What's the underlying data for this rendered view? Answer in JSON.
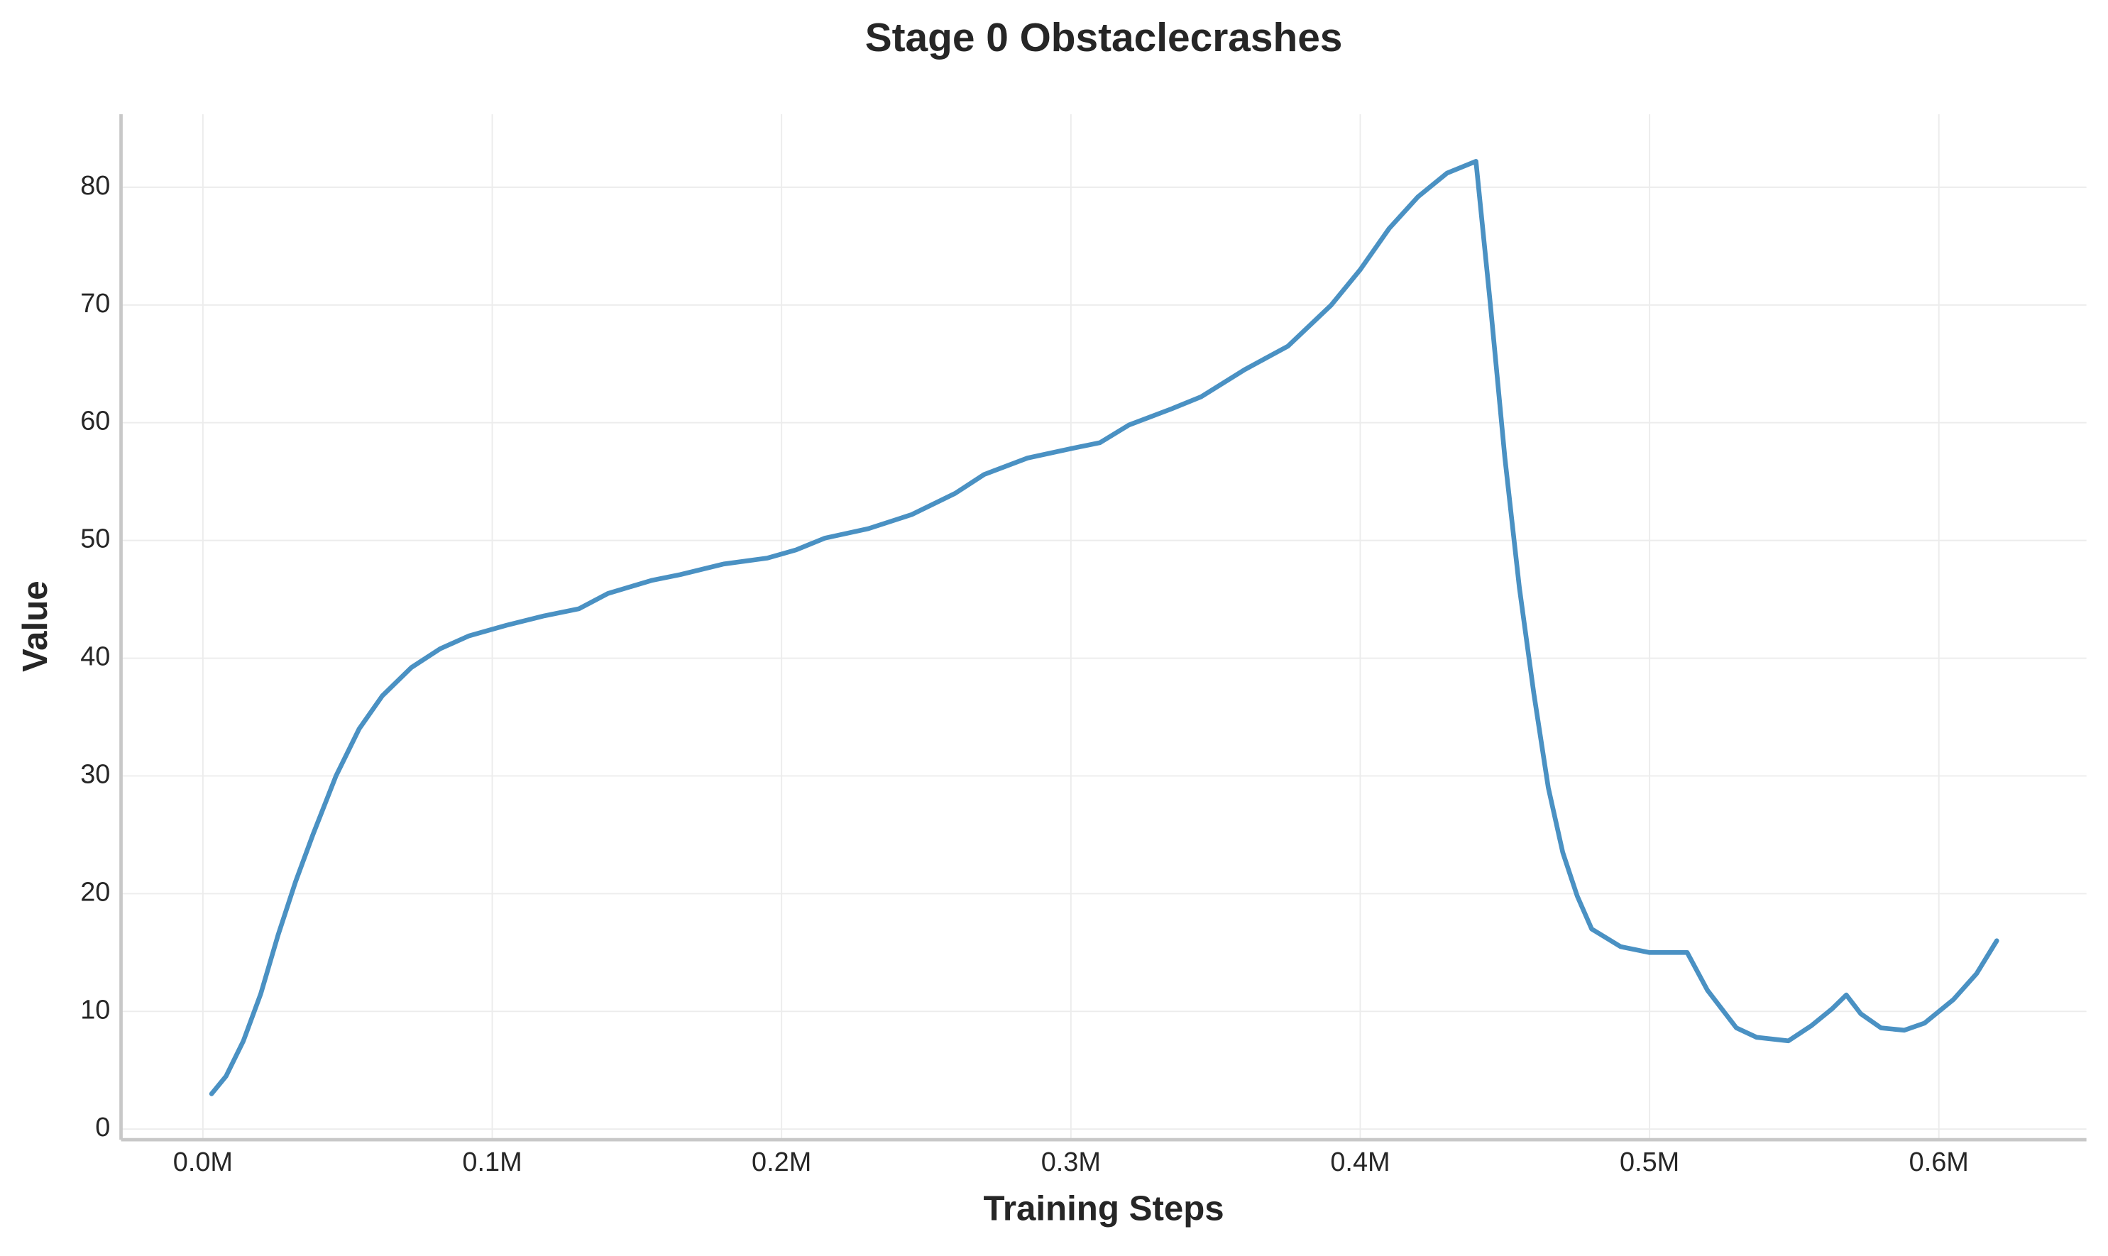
{
  "chart_data": {
    "type": "line",
    "title": "Stage 0 Obstaclecrashes",
    "x_label": "Training Steps",
    "y_label": "Value",
    "xlim": [
      -28300,
      651000
    ],
    "ylim": [
      -0.9,
      86.2
    ],
    "xticks": [
      {
        "value": 0,
        "label": "0.0M"
      },
      {
        "value": 100000,
        "label": "0.1M"
      },
      {
        "value": 200000,
        "label": "0.2M"
      },
      {
        "value": 300000,
        "label": "0.3M"
      },
      {
        "value": 400000,
        "label": "0.4M"
      },
      {
        "value": 500000,
        "label": "0.5M"
      },
      {
        "value": 600000,
        "label": "0.6M"
      }
    ],
    "yticks": [
      0,
      10,
      20,
      30,
      40,
      50,
      60,
      70,
      80
    ],
    "grid": true,
    "x": [
      3000,
      8000,
      14000,
      20000,
      26000,
      32000,
      38000,
      46000,
      54000,
      62000,
      72000,
      82000,
      92000,
      105000,
      118000,
      130000,
      140000,
      155000,
      165000,
      180000,
      195000,
      205000,
      215000,
      230000,
      245000,
      260000,
      270000,
      285000,
      300000,
      310000,
      320000,
      335000,
      345000,
      360000,
      375000,
      390000,
      400000,
      410000,
      420000,
      430000,
      440000,
      445000,
      450000,
      455000,
      460000,
      465000,
      470000,
      475000,
      480000,
      490000,
      500000,
      513000,
      520000,
      530000,
      537000,
      548000,
      556000,
      563000,
      568000,
      573000,
      580000,
      588000,
      595000,
      605000,
      613000,
      620000
    ],
    "series": [
      {
        "name": "Obstaclecrashes",
        "color": "#4a91c3",
        "values": [
          3.0,
          4.5,
          7.5,
          11.5,
          16.5,
          21,
          25,
          30,
          34,
          36.8,
          39.2,
          40.8,
          41.9,
          42.8,
          43.6,
          44.2,
          45.5,
          46.6,
          47.1,
          48,
          48.5,
          49.2,
          50.2,
          51,
          52.2,
          54,
          55.6,
          57,
          57.8,
          58.3,
          59.8,
          61.2,
          62.2,
          64.5,
          66.5,
          70,
          73,
          76.5,
          79.2,
          81.2,
          82.2,
          70,
          57,
          46,
          37,
          29,
          23.5,
          19.8,
          17,
          15.5,
          15,
          15,
          11.8,
          8.6,
          7.8,
          7.5,
          8.8,
          10.2,
          11.4,
          9.8,
          8.6,
          8.4,
          9,
          11,
          13.2,
          16
        ]
      }
    ]
  }
}
